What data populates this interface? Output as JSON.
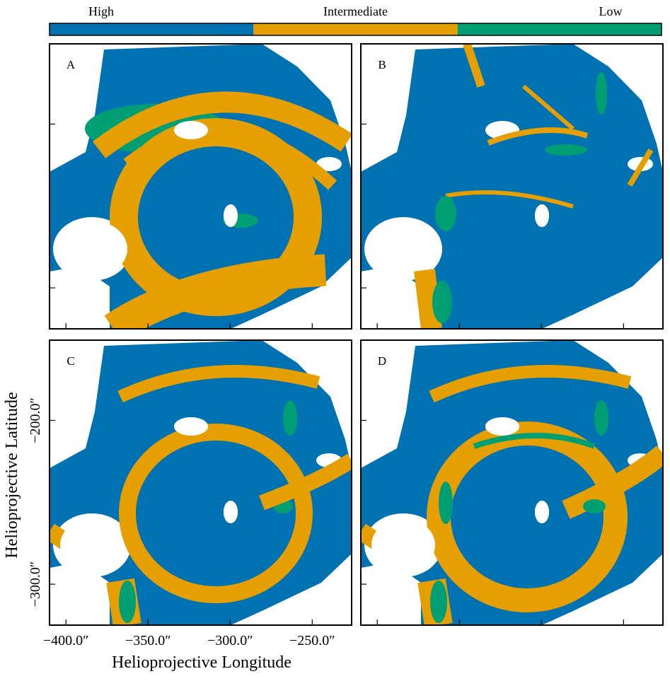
{
  "chart_data": {
    "type": "map",
    "legend": [
      {
        "name": "High",
        "color": "#0072b2"
      },
      {
        "name": "Intermediate",
        "color": "#e69f00"
      },
      {
        "name": "Low",
        "color": "#009e73"
      }
    ],
    "panels": [
      "A",
      "B",
      "C",
      "D"
    ],
    "xlabel": "Helioprojective Longitude",
    "ylabel": "Helioprojective Latitude",
    "xlim": [
      -410,
      -226
    ],
    "ylim": [
      -325,
      -151
    ],
    "xticks": [
      {
        "value": -400,
        "label": "−400.0″"
      },
      {
        "value": -350,
        "label": "−350.0″"
      },
      {
        "value": -300,
        "label": "−300.0″"
      },
      {
        "value": -250,
        "label": "−250.0″"
      }
    ],
    "yticks": [
      {
        "value": -200,
        "label": "−200.0″"
      },
      {
        "value": -300,
        "label": "−300.0″"
      }
    ]
  }
}
